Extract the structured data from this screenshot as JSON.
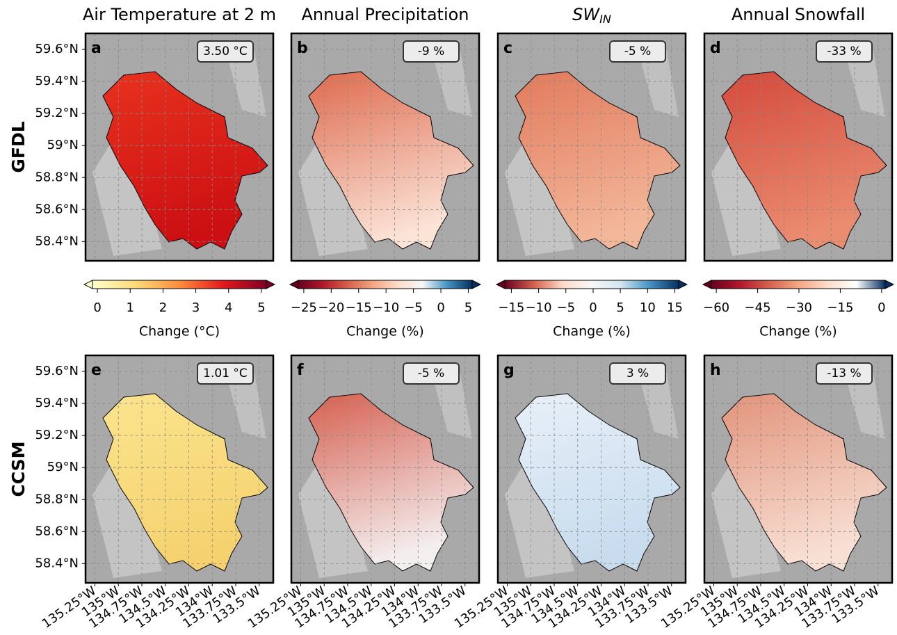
{
  "columns": [
    {
      "title": "Air Temperature at 2 m"
    },
    {
      "title": "Annual Precipitation"
    },
    {
      "title": "SW",
      "title_sub": "IN"
    },
    {
      "title": "Annual Snowfall"
    }
  ],
  "rows": [
    "GFDL",
    "CCSM"
  ],
  "panels": [
    {
      "letter": "a",
      "annotation": "3.50 °C",
      "map_colors": [
        "#e8321e",
        "#cc0f12"
      ]
    },
    {
      "letter": "b",
      "annotation": "-9 %",
      "map_colors": [
        "#de6a4e",
        "#fbe3d6"
      ]
    },
    {
      "letter": "c",
      "annotation": "-5 %",
      "map_colors": [
        "#e27a5c",
        "#f3b79a"
      ]
    },
    {
      "letter": "d",
      "annotation": "-33 %",
      "map_colors": [
        "#d44a3c",
        "#ea8c70"
      ]
    },
    {
      "letter": "e",
      "annotation": "1.01 °C",
      "map_colors": [
        "#fbe48e",
        "#f5d26e"
      ]
    },
    {
      "letter": "f",
      "annotation": "-5 %",
      "map_colors": [
        "#d66050",
        "#f4efef"
      ]
    },
    {
      "letter": "g",
      "annotation": "3 %",
      "map_colors": [
        "#e8f0f8",
        "#c8dcee"
      ]
    },
    {
      "letter": "h",
      "annotation": "-13 %",
      "map_colors": [
        "#e2937a",
        "#f8e0d4"
      ]
    }
  ],
  "map_axes": {
    "xlim": [
      -135.35,
      -133.35
    ],
    "ylim": [
      58.28,
      59.7
    ],
    "xticks": [
      {
        "value": -135.25,
        "label": "135.25°W"
      },
      {
        "value": -135,
        "label": "135°W"
      },
      {
        "value": -134.75,
        "label": "134.75°W"
      },
      {
        "value": -134.5,
        "label": "134.5°W"
      },
      {
        "value": -134.25,
        "label": "134.25°W"
      },
      {
        "value": -134,
        "label": "134°W"
      },
      {
        "value": -133.75,
        "label": "133.75°W"
      },
      {
        "value": -133.5,
        "label": "133.5°W"
      }
    ],
    "yticks": [
      {
        "value": 58.4,
        "label": "58.4°N"
      },
      {
        "value": 58.6,
        "label": "58.6°N"
      },
      {
        "value": 58.8,
        "label": "58.8°N"
      },
      {
        "value": 59,
        "label": "59°N"
      },
      {
        "value": 59.2,
        "label": "59.2°N"
      },
      {
        "value": 59.4,
        "label": "59.4°N"
      },
      {
        "value": 59.6,
        "label": "59.6°N"
      }
    ],
    "grid": true
  },
  "colorbars": [
    {
      "label": "Change (°C)",
      "lim": [
        -0.15,
        5.15
      ],
      "ticks": [
        0,
        1,
        2,
        3,
        4,
        5
      ],
      "colors": [
        "#ffffcc",
        "#fed976",
        "#fd8d3c",
        "#e31a1c",
        "#800026"
      ]
    },
    {
      "label": "Change (%)",
      "lim": [
        -26,
        5.7
      ],
      "ticks": [
        {
          "value": -25,
          "label": "−25"
        },
        {
          "value": -20,
          "label": "−20"
        },
        {
          "value": -15,
          "label": "−15"
        },
        {
          "value": -10,
          "label": "−10"
        },
        {
          "value": -5,
          "label": "−5"
        },
        0,
        5
      ],
      "colors": [
        "#67001f",
        "#b2182b",
        "#d6604d",
        "#f4a582",
        "#fddbc7",
        "#f7f7f7",
        "#4393c3",
        "#053061"
      ]
    },
    {
      "label": "Change (%)",
      "lim": [
        -16.2,
        15.7
      ],
      "ticks": [
        {
          "value": -15,
          "label": "−15"
        },
        {
          "value": -10,
          "label": "−10"
        },
        {
          "value": -5,
          "label": "−5"
        },
        0,
        5,
        10,
        15
      ],
      "colors": [
        "#67001f",
        "#d6604d",
        "#fddbc7",
        "#f7f7f7",
        "#d1e5f0",
        "#4393c3",
        "#053061"
      ]
    },
    {
      "label": "Change (%)",
      "lim": [
        -61.8,
        1.3
      ],
      "ticks": [
        {
          "value": -60,
          "label": "−60"
        },
        {
          "value": -45,
          "label": "−45"
        },
        {
          "value": -30,
          "label": "−30"
        },
        {
          "value": -15,
          "label": "−15"
        },
        0
      ],
      "colors": [
        "#67001f",
        "#b2182b",
        "#d6604d",
        "#f4a582",
        "#fddbc7",
        "#ffffff",
        "#053061"
      ]
    }
  ]
}
